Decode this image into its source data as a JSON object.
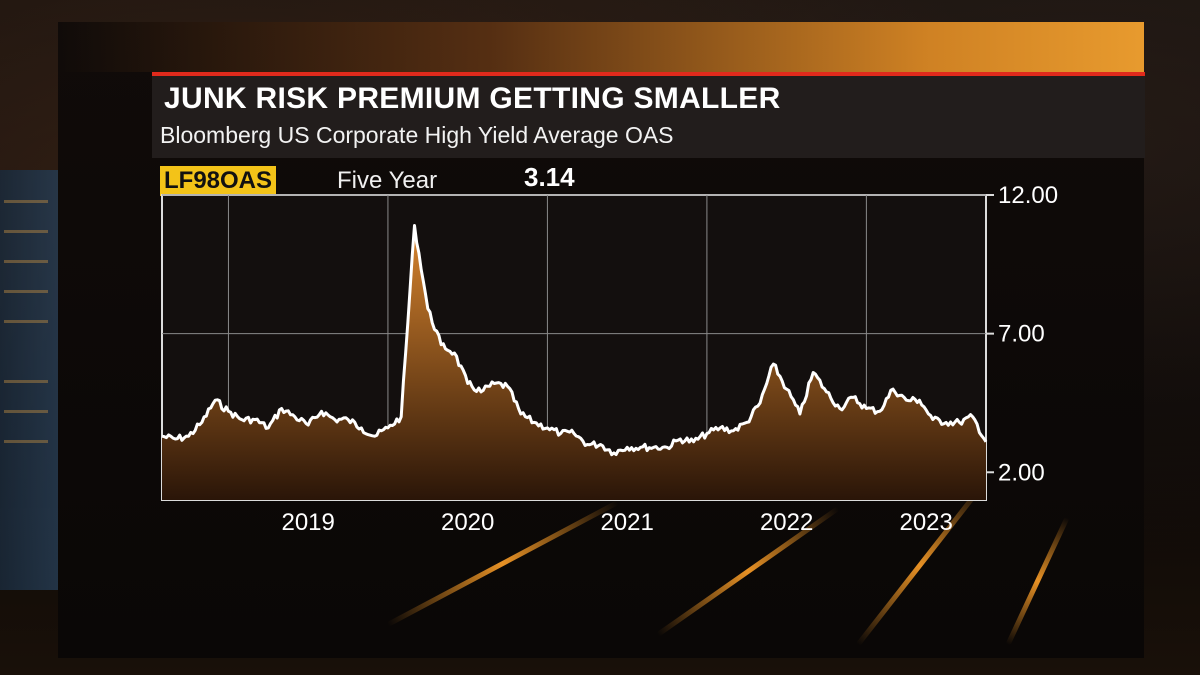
{
  "headline": "JUNK RISK PREMIUM GETTING SMALLER",
  "subheadline": "Bloomberg US Corporate High Yield Average OAS",
  "ticker": "LF98OAS",
  "period": "Five Year",
  "last_value": "3.14",
  "colors": {
    "accent_red": "#e02a1c",
    "ticker_yellow": "#f3c318",
    "line": "#ffffff",
    "area_top": "#d9852e",
    "area_bottom": "#2a1508",
    "plot_bg": "#130f0e"
  },
  "chart_data": {
    "type": "area",
    "title": "JUNK RISK PREMIUM GETTING SMALLER",
    "subtitle": "Bloomberg US Corporate High Yield Average OAS",
    "xlabel": "",
    "ylabel": "",
    "x_range": [
      "2018-08",
      "2023-10"
    ],
    "ylim": [
      1.0,
      12.0
    ],
    "y_ticks": [
      {
        "value": 12.0,
        "label": "12.00"
      },
      {
        "value": 7.0,
        "label": "7.00"
      },
      {
        "value": 2.0,
        "label": "2.00"
      }
    ],
    "x_ticks": [
      "2019",
      "2020",
      "2021",
      "2022",
      "2023"
    ],
    "grid": true,
    "legend": "none",
    "series": [
      {
        "name": "LF98OAS",
        "points": [
          [
            "2018-08",
            3.3
          ],
          [
            "2018-09",
            3.2
          ],
          [
            "2018-10",
            3.3
          ],
          [
            "2018-11",
            3.8
          ],
          [
            "2018-12",
            4.6
          ],
          [
            "2019-01",
            4.2
          ],
          [
            "2019-02",
            3.9
          ],
          [
            "2019-03",
            3.9
          ],
          [
            "2019-04",
            3.6
          ],
          [
            "2019-05",
            4.3
          ],
          [
            "2019-06",
            4.0
          ],
          [
            "2019-07",
            3.7
          ],
          [
            "2019-08",
            4.2
          ],
          [
            "2019-09",
            3.9
          ],
          [
            "2019-10",
            3.9
          ],
          [
            "2019-11",
            3.6
          ],
          [
            "2019-12",
            3.3
          ],
          [
            "2020-01",
            3.6
          ],
          [
            "2020-02",
            4.0
          ],
          [
            "2020-03",
            10.9
          ],
          [
            "2020-04",
            7.9
          ],
          [
            "2020-05",
            6.6
          ],
          [
            "2020-06",
            6.3
          ],
          [
            "2020-07",
            5.2
          ],
          [
            "2020-08",
            4.9
          ],
          [
            "2020-09",
            5.2
          ],
          [
            "2020-10",
            5.1
          ],
          [
            "2020-11",
            4.1
          ],
          [
            "2020-12",
            3.8
          ],
          [
            "2021-01",
            3.6
          ],
          [
            "2021-02",
            3.4
          ],
          [
            "2021-03",
            3.4
          ],
          [
            "2021-04",
            3.0
          ],
          [
            "2021-05",
            3.0
          ],
          [
            "2021-06",
            2.7
          ],
          [
            "2021-07",
            2.9
          ],
          [
            "2021-08",
            2.9
          ],
          [
            "2021-09",
            2.9
          ],
          [
            "2021-10",
            2.9
          ],
          [
            "2021-11",
            3.2
          ],
          [
            "2021-12",
            3.1
          ],
          [
            "2022-01",
            3.4
          ],
          [
            "2022-02",
            3.6
          ],
          [
            "2022-03",
            3.5
          ],
          [
            "2022-04",
            3.8
          ],
          [
            "2022-05",
            4.5
          ],
          [
            "2022-06",
            5.9
          ],
          [
            "2022-07",
            5.0
          ],
          [
            "2022-08",
            4.1
          ],
          [
            "2022-09",
            5.6
          ],
          [
            "2022-10",
            4.9
          ],
          [
            "2022-11",
            4.3
          ],
          [
            "2022-12",
            4.7
          ],
          [
            "2023-01",
            4.3
          ],
          [
            "2023-02",
            4.2
          ],
          [
            "2023-03",
            5.0
          ],
          [
            "2023-04",
            4.6
          ],
          [
            "2023-05",
            4.6
          ],
          [
            "2023-06",
            3.9
          ],
          [
            "2023-07",
            3.8
          ],
          [
            "2023-08",
            3.8
          ],
          [
            "2023-09",
            4.0
          ],
          [
            "2023-10",
            3.1
          ]
        ]
      }
    ]
  }
}
